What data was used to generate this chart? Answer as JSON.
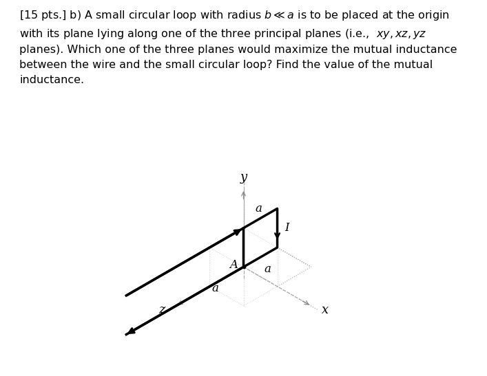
{
  "bg_color": "#ffffff",
  "wire_color": "#000000",
  "axis_color": "#aaaaaa",
  "lw_wire": 2.5,
  "lw_axis": 0.9,
  "a": 1.0,
  "text_paragraph": "[15 pts.] b) A small circular loop with radius $b \\ll a$ is to be placed at the origin\nwith its plane lying along one of the three principal planes (i.e.,  $xy, xz, yz$\nplanes). Which one of the three planes would maximize the mutual inductance\nbetween the wire and the small circular loop? Find the value of the mutual\ninductance.",
  "label_y": "y",
  "label_x": "x",
  "label_z": "z",
  "label_a_top": "a",
  "label_a_left": "a",
  "label_a_right": "a",
  "label_A": "A",
  "label_I": "I"
}
